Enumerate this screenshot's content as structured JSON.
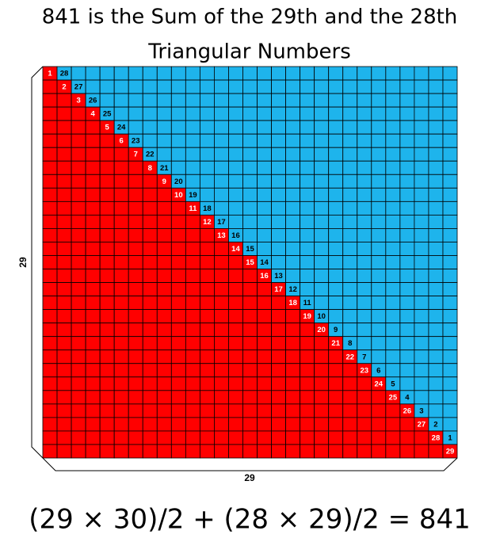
{
  "title": [
    "841 is the Sum of the 29th and the 28th",
    "Triangular Numbers"
  ],
  "side_label": 29,
  "bottom_label": 29,
  "red_numbers": [
    1,
    2,
    3,
    4,
    5,
    6,
    7,
    8,
    9,
    10,
    11,
    12,
    13,
    14,
    15,
    16,
    17,
    18,
    19,
    20,
    21,
    22,
    23,
    24,
    25,
    26,
    27,
    28,
    29
  ],
  "blue_numbers": [
    28,
    27,
    26,
    25,
    24,
    23,
    22,
    21,
    20,
    19,
    18,
    17,
    16,
    15,
    14,
    13,
    12,
    11,
    10,
    9,
    8,
    7,
    6,
    5,
    4,
    3,
    2,
    1
  ],
  "formula": "(29 × 30)/2 + (28 × 29)/2 = 841"
}
